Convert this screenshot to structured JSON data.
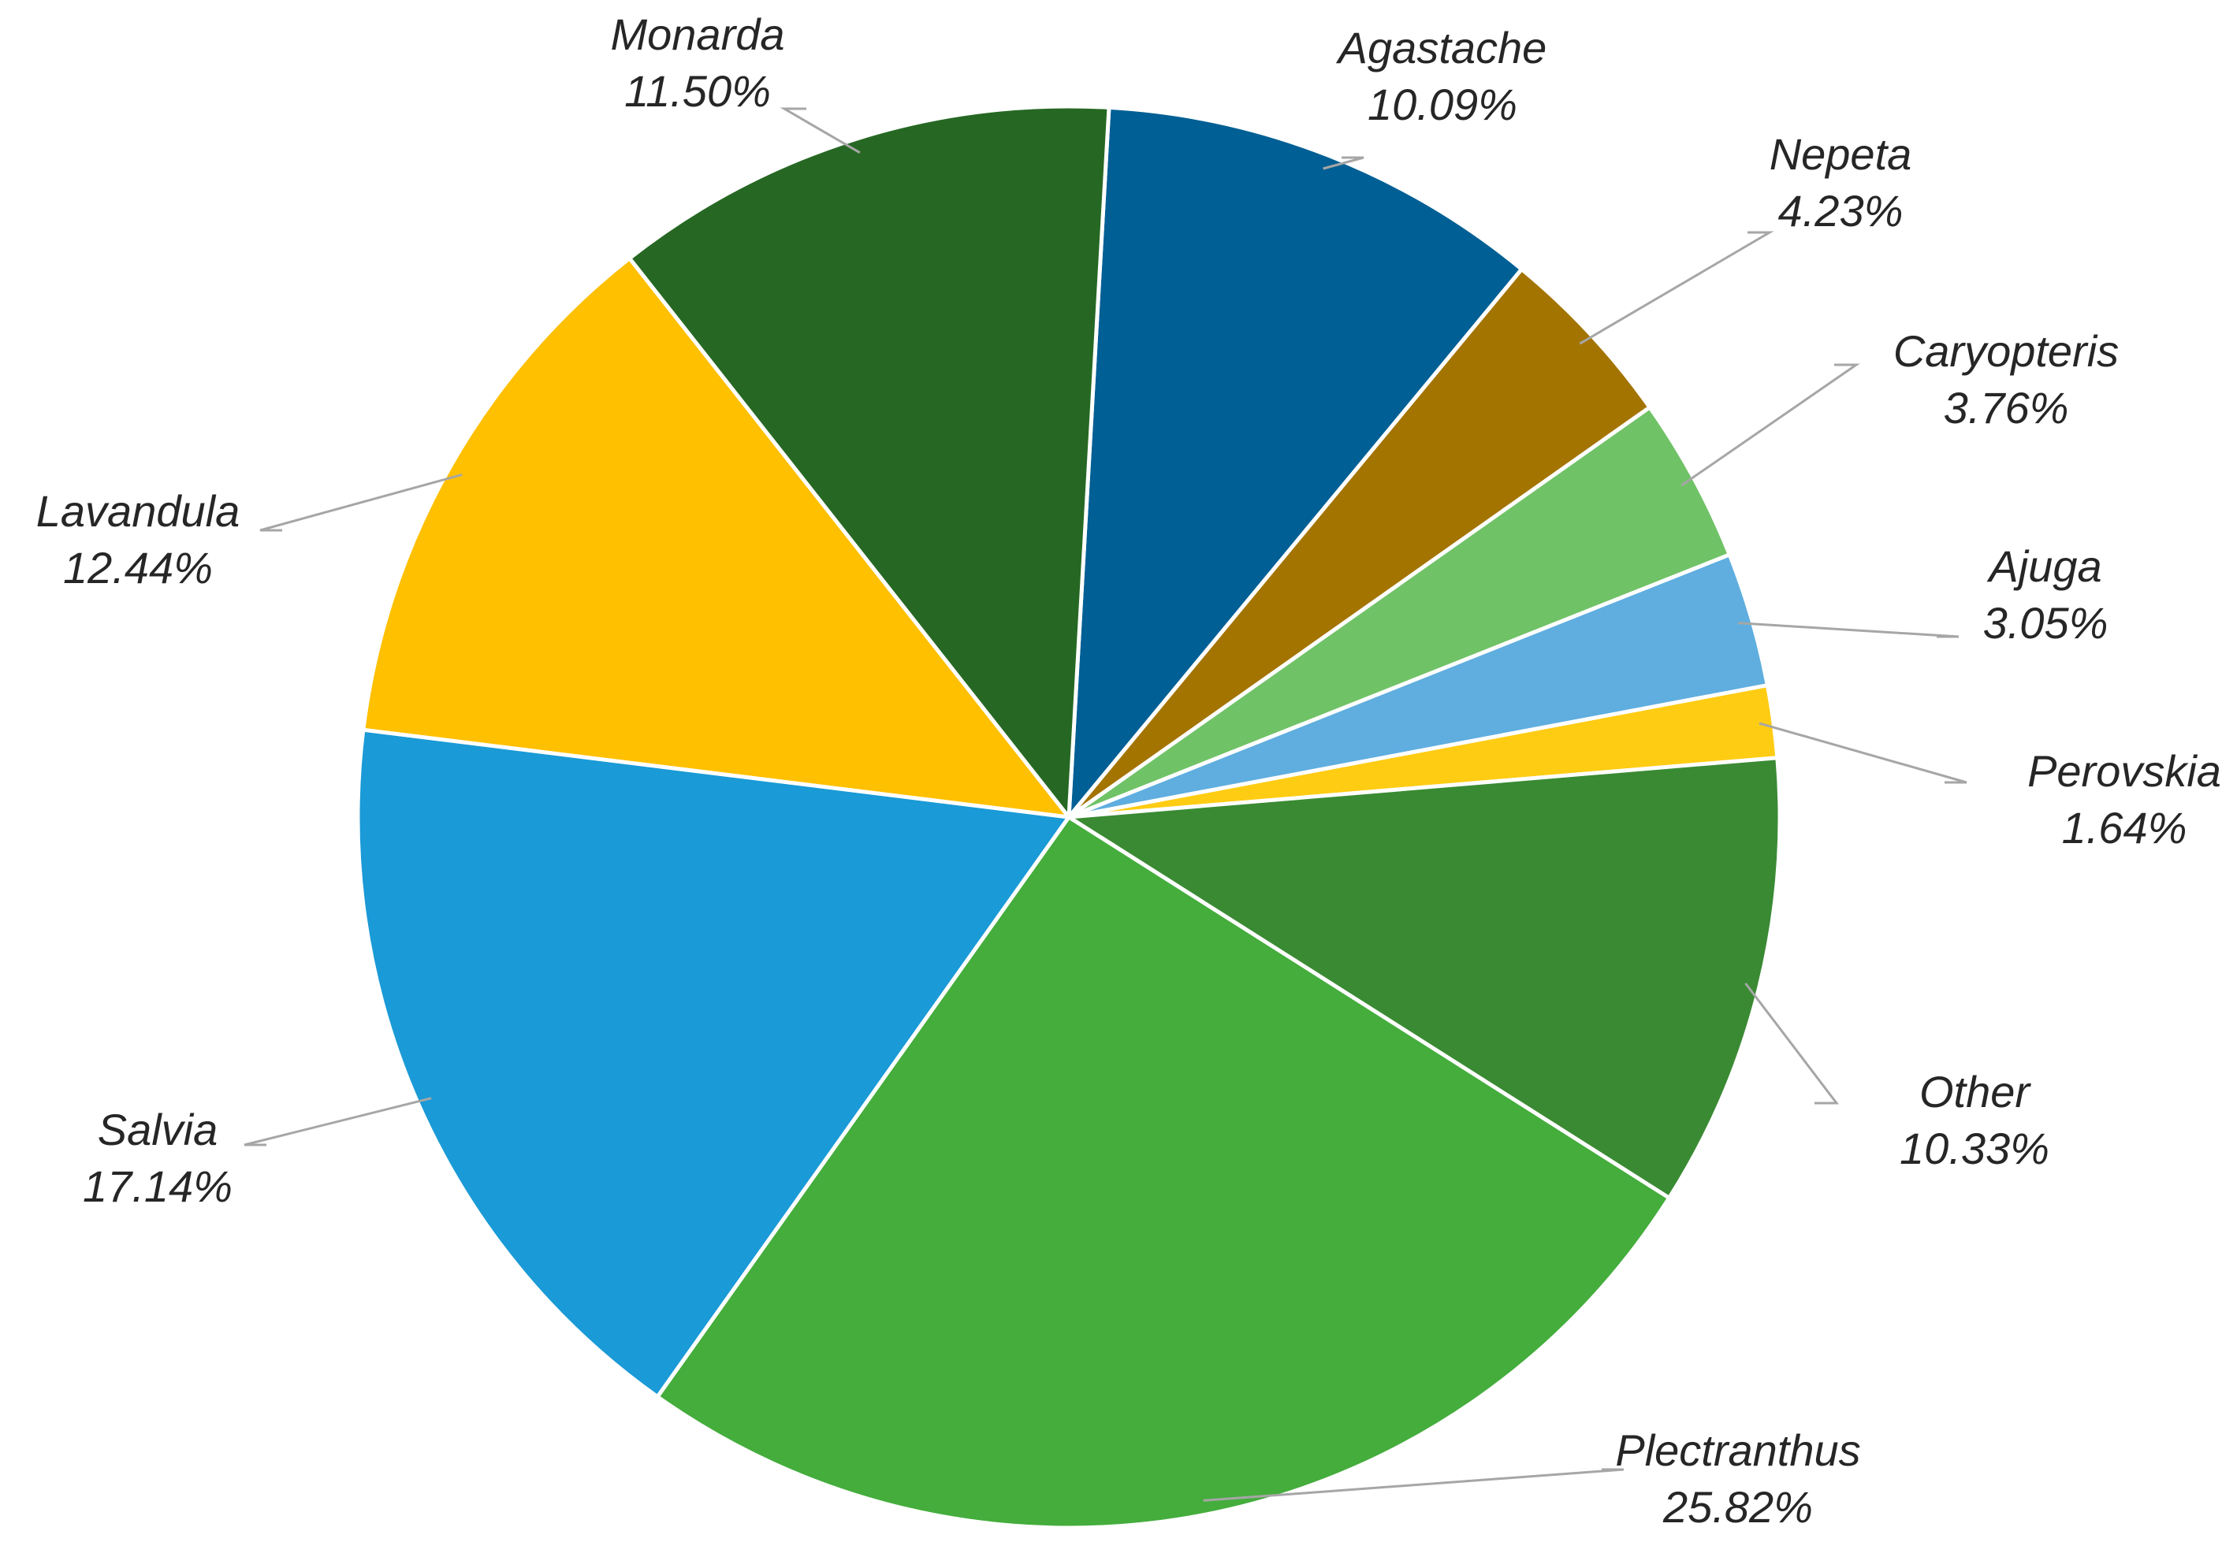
{
  "chart_data": {
    "type": "pie",
    "title": "",
    "start_angle_deg": 86.76,
    "direction": "clockwise",
    "slices": [
      {
        "label": "Agastache",
        "value": 10.09,
        "value_label": "10.09%",
        "color": "#005f94"
      },
      {
        "label": "Nepeta",
        "value": 4.23,
        "value_label": "4.23%",
        "color": "#a37400"
      },
      {
        "label": "Caryopteris",
        "value": 3.76,
        "value_label": "3.76%",
        "color": "#70c267"
      },
      {
        "label": "Ajuga",
        "value": 3.05,
        "value_label": "3.05%",
        "color": "#5faedf"
      },
      {
        "label": "Perovskia",
        "value": 1.64,
        "value_label": "1.64%",
        "color": "#ffcc14"
      },
      {
        "label": "Other",
        "value": 10.33,
        "value_label": "10.33%",
        "color": "#3a8a33"
      },
      {
        "label": "Plectranthus",
        "value": 25.82,
        "value_label": "25.82%",
        "color": "#44ad3c"
      },
      {
        "label": "Salvia",
        "value": 17.14,
        "value_label": "17.14%",
        "color": "#1a9ad6"
      },
      {
        "label": "Lavandula",
        "value": 12.44,
        "value_label": "12.44%",
        "color": "#ffc000"
      },
      {
        "label": "Monarda",
        "value": 11.5,
        "value_label": "11.50%",
        "color": "#266823"
      }
    ]
  }
}
